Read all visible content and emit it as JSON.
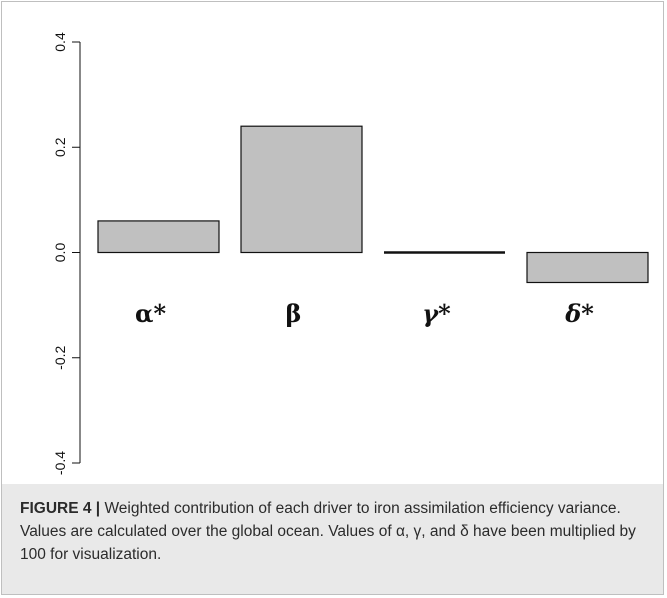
{
  "chart_data": {
    "type": "bar",
    "categories": [
      "α*",
      "β",
      "γ*",
      "δ*"
    ],
    "italic_categories": [
      false,
      false,
      true,
      true
    ],
    "values": [
      0.06,
      0.24,
      0.0,
      -0.057
    ],
    "ylim": [
      -0.4,
      0.4
    ],
    "yticks": [
      "-0.4",
      "-0.2",
      "0.0",
      "0.2",
      "0.4"
    ],
    "bar_color": "#c0c0c0",
    "grid": false
  },
  "caption": {
    "label": "FIGURE 4 |",
    "text": " Weighted contribution of each driver to iron assimilation efficiency variance. Values are calculated over the global ocean. Values of α, γ, and δ have been multiplied by 100 for visualization."
  }
}
